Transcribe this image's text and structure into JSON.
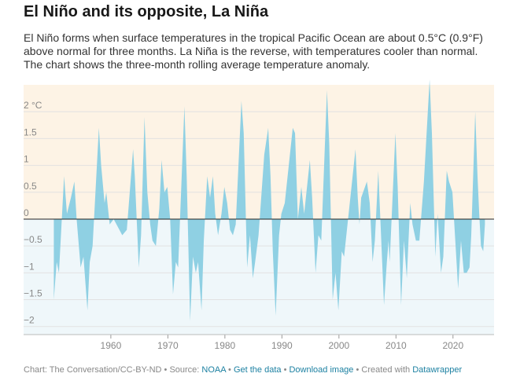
{
  "chart_data": {
    "type": "area",
    "title": "El Niño and its opposite, La Niña",
    "subtitle": "El Niño forms when surface temperatures in the tropical Pacific Ocean are about 0.5°C (0.9°F) above normal for three months. La Niña is the reverse, with temperatures cooler than normal. The chart shows the three-month rolling average temperature anomaly.",
    "x": [
      1950.0,
      1950.5,
      1950.9,
      1951.8,
      1952.3,
      1953.0,
      1953.6,
      1954.0,
      1954.7,
      1955.2,
      1955.9,
      1956.3,
      1956.8,
      1957.9,
      1958.3,
      1958.9,
      1959.2,
      1959.8,
      1960.5,
      1961.5,
      1962.0,
      1962.8,
      1963.9,
      1964.2,
      1964.9,
      1965.3,
      1965.9,
      1966.4,
      1966.9,
      1967.3,
      1967.9,
      1968.5,
      1968.9,
      1969.4,
      1969.9,
      1970.4,
      1970.9,
      1971.4,
      1971.8,
      1972.9,
      1973.3,
      1973.9,
      1974.4,
      1974.9,
      1975.3,
      1975.9,
      1976.3,
      1976.9,
      1977.4,
      1977.9,
      1978.3,
      1978.8,
      1979.4,
      1979.9,
      1980.4,
      1980.9,
      1981.4,
      1981.9,
      1982.9,
      1983.3,
      1983.9,
      1984.4,
      1984.9,
      1985.3,
      1985.9,
      1986.9,
      1987.6,
      1988.0,
      1988.4,
      1988.9,
      1989.5,
      1989.9,
      1990.5,
      1991.9,
      1992.3,
      1992.8,
      1993.4,
      1993.9,
      1994.9,
      1995.3,
      1995.9,
      1996.4,
      1996.9,
      1997.9,
      1998.3,
      1998.9,
      1999.4,
      1999.9,
      2000.5,
      2000.9,
      2001.5,
      2002.9,
      2003.3,
      2003.6,
      2003.9,
      2004.9,
      2005.4,
      2005.9,
      2006.3,
      2006.9,
      2007.3,
      2007.9,
      2008.4,
      2008.7,
      2008.9,
      2009.9,
      2010.3,
      2010.9,
      2011.4,
      2011.9,
      2012.5,
      2012.9,
      2013.5,
      2014.1,
      2014.9,
      2015.9,
      2016.3,
      2016.9,
      2017.3,
      2017.9,
      2018.3,
      2018.9,
      2019.3,
      2019.9,
      2020.9,
      2021.4,
      2021.9,
      2022.4,
      2022.9,
      2023.2,
      2023.9,
      2024.3,
      2024.6,
      2024.9,
      2025.3,
      2025.6
    ],
    "values": [
      -1.5,
      -0.8,
      -1.0,
      0.8,
      0.1,
      0.4,
      0.7,
      0.0,
      -0.9,
      -0.7,
      -1.7,
      -0.8,
      -0.5,
      1.7,
      1.0,
      0.3,
      0.5,
      -0.1,
      0.0,
      -0.2,
      -0.3,
      -0.2,
      1.3,
      0.8,
      -0.9,
      -0.3,
      1.9,
      0.5,
      -0.1,
      -0.4,
      -0.5,
      0.2,
      1.1,
      0.5,
      0.6,
      0.0,
      -1.4,
      -0.8,
      -0.9,
      2.1,
      0.8,
      -1.9,
      -0.7,
      -1.0,
      -0.8,
      -1.7,
      -0.4,
      0.8,
      0.4,
      0.8,
      0.1,
      -0.3,
      0.1,
      0.6,
      0.3,
      -0.2,
      -0.3,
      -0.1,
      2.2,
      1.6,
      -0.9,
      -0.3,
      -1.1,
      -0.8,
      -0.3,
      1.2,
      1.7,
      0.8,
      -0.6,
      -1.8,
      -0.3,
      0.1,
      0.3,
      1.7,
      1.6,
      0.0,
      0.6,
      0.1,
      1.1,
      0.4,
      -1.0,
      -0.3,
      -0.4,
      2.4,
      1.4,
      -1.5,
      -1.0,
      -1.7,
      -0.6,
      -0.7,
      -0.1,
      1.3,
      0.4,
      -0.1,
      0.4,
      0.7,
      0.3,
      -0.8,
      -0.4,
      0.9,
      -0.1,
      -1.6,
      -0.8,
      -0.4,
      -0.8,
      1.6,
      0.6,
      -1.6,
      -0.4,
      -1.1,
      0.3,
      -0.1,
      -0.4,
      -0.4,
      0.7,
      2.6,
      1.6,
      -0.7,
      0.1,
      -1.0,
      -0.7,
      0.9,
      0.7,
      0.5,
      -1.3,
      -0.4,
      -1.0,
      -1.0,
      -0.9,
      -0.3,
      2.0,
      0.8,
      0.1,
      -0.5,
      -0.6,
      -0.1
    ],
    "color": "#8fd0e3",
    "xlim": [
      1944.7,
      2027.2
    ],
    "xticks": [
      1960,
      1970,
      1980,
      1990,
      2000,
      2010,
      2020
    ],
    "ylim": [
      -2.15,
      2.5
    ],
    "yticks": [
      {
        "value": 2,
        "label": "2 °C"
      },
      1.5,
      1,
      0.5,
      0,
      {
        "value": -0.5,
        "label": "−0.5"
      },
      {
        "value": -1,
        "label": "−1"
      },
      {
        "value": -1.5,
        "label": "−1.5"
      },
      {
        "value": -2,
        "label": "−2"
      }
    ],
    "grid": true,
    "footer": {
      "credit": "Chart: The Conversation/CC-BY-ND",
      "source_label": "Source:",
      "source": "NOAA",
      "get_data": "Get the data",
      "download": "Download image",
      "created": "Created with",
      "tool": "Datawrapper"
    }
  }
}
